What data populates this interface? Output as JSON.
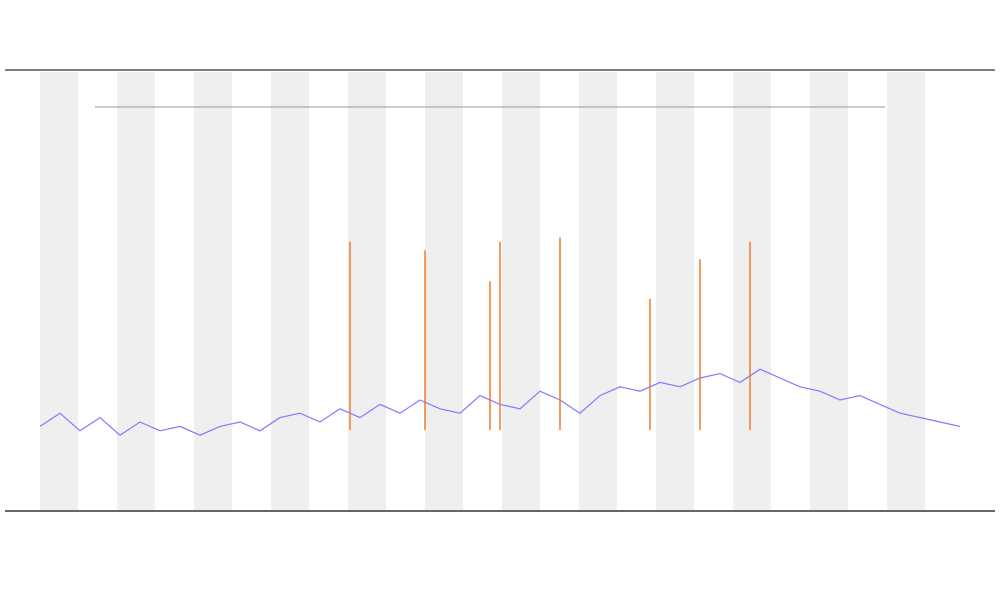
{
  "chart_data": {
    "type": "line",
    "x": [
      0,
      2,
      4,
      6,
      8,
      10,
      12,
      14,
      16,
      18,
      20,
      22,
      24,
      26,
      28,
      30,
      32,
      34,
      36,
      38,
      40,
      42,
      44,
      46,
      48,
      50,
      52,
      54,
      56,
      58,
      60,
      62,
      64,
      66,
      68,
      70,
      72,
      74,
      76,
      78,
      80,
      82,
      84,
      86,
      88,
      90,
      92
    ],
    "xlim": [
      0,
      92
    ],
    "ylim": [
      0,
      100
    ],
    "series": [
      {
        "color": "#7b7bff",
        "values": [
          19,
          22,
          18,
          21,
          17,
          20,
          18,
          19,
          17,
          19,
          20,
          18,
          21,
          22,
          20,
          23,
          21,
          24,
          22,
          25,
          23,
          22,
          26,
          24,
          23,
          27,
          25,
          22,
          26,
          28,
          27,
          29,
          28,
          30,
          31,
          29,
          32,
          30,
          28,
          27,
          25,
          26,
          24,
          22,
          21,
          20,
          19
        ]
      }
    ],
    "spikes": {
      "color": "#f07a2a",
      "x": [
        31,
        38.5,
        45,
        46,
        52,
        61,
        66,
        71
      ],
      "values": [
        61,
        59,
        52,
        61,
        62,
        48,
        57,
        61
      ]
    }
  }
}
